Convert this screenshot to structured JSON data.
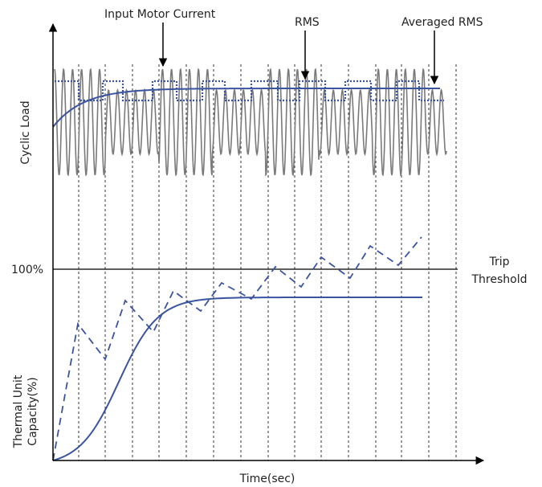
{
  "labels": {
    "input_motor_current": "Input Motor Current",
    "rms": "RMS",
    "averaged_rms": "Averaged RMS",
    "cyclic_load": "Cyclic Load",
    "thermal_line1": "Thermal Unit",
    "thermal_line2": "Capacity(%)",
    "hundred_percent": "100%",
    "trip_line1": "Trip",
    "trip_line2": "Threshold",
    "time_axis": "Time(sec)"
  },
  "colors": {
    "axis": "#000000",
    "current_wave": "#7a7a7a",
    "curve_blue": "#3b54a0",
    "gridline": "#333333"
  }
}
